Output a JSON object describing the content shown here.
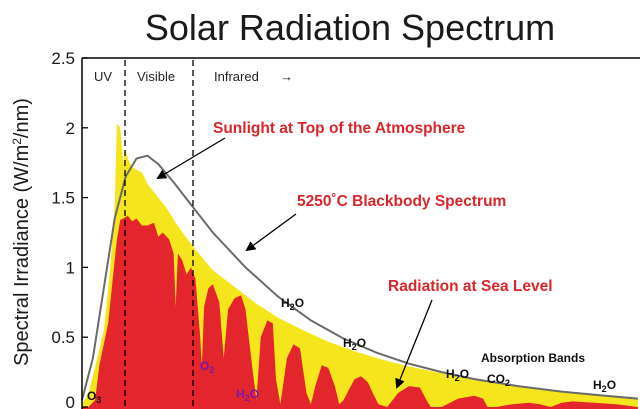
{
  "chart_data": {
    "type": "area",
    "title": "Solar Radiation Spectrum",
    "ylabel": "Spectral Irradiance (W/m²/nm)",
    "ylabel_parts": [
      "Spectral Irradiance (W/m",
      "2",
      "/nm)"
    ],
    "xlabel": "",
    "ylim": [
      0,
      2.5
    ],
    "yticks": [
      "0",
      "0.5",
      "1",
      "1.5",
      "2",
      "2.5"
    ],
    "ytick_values": [
      0,
      0.5,
      1,
      1.5,
      2,
      2.5
    ],
    "regions": [
      "UV",
      "Visible",
      "Infrared"
    ],
    "region_arrow": "→",
    "series": [
      {
        "name": "Sunlight at Top of the Atmosphere",
        "color": "#f5e51c",
        "x": [
          0,
          6,
          14,
          20,
          26,
          30,
          32,
          35,
          38,
          40,
          42,
          46,
          50,
          55,
          60,
          65,
          70,
          78,
          86,
          95,
          105,
          120,
          140,
          160,
          180,
          200,
          225,
          250,
          275,
          300,
          325,
          350,
          375,
          400,
          425,
          450,
          475,
          510
        ],
        "y": [
          0.02,
          0.1,
          0.35,
          0.55,
          1.0,
          1.45,
          2.03,
          2.0,
          1.75,
          1.85,
          1.78,
          1.72,
          1.7,
          1.68,
          1.6,
          1.55,
          1.5,
          1.42,
          1.32,
          1.22,
          1.12,
          0.98,
          0.86,
          0.74,
          0.64,
          0.56,
          0.47,
          0.4,
          0.34,
          0.29,
          0.25,
          0.21,
          0.18,
          0.15,
          0.12,
          0.1,
          0.08,
          0.06
        ]
      },
      {
        "name": "5250˚C Blackbody Spectrum",
        "color": "#6b6b6b",
        "x": [
          0,
          10,
          20,
          30,
          40,
          50,
          60,
          70,
          85,
          100,
          120,
          150,
          180,
          210,
          240,
          270,
          300,
          330,
          360,
          400,
          440,
          480,
          510
        ],
        "y": [
          0.05,
          0.35,
          0.85,
          1.35,
          1.65,
          1.78,
          1.8,
          1.74,
          1.6,
          1.45,
          1.25,
          1.0,
          0.79,
          0.62,
          0.49,
          0.39,
          0.31,
          0.25,
          0.2,
          0.15,
          0.11,
          0.08,
          0.06
        ]
      },
      {
        "name": "Radiation at Sea Level",
        "color": "#e3262e",
        "x": [
          0,
          6,
          12,
          16,
          20,
          24,
          28,
          32,
          35,
          38,
          42,
          46,
          50,
          55,
          60,
          66,
          70,
          74,
          80,
          84,
          86,
          88,
          92,
          96,
          100,
          104,
          108,
          110,
          112,
          116,
          120,
          126,
          130,
          134,
          140,
          146,
          150,
          156,
          160,
          164,
          170,
          175,
          178,
          182,
          188,
          194,
          200,
          206,
          210,
          214,
          220,
          226,
          232,
          236,
          240,
          250,
          256,
          262,
          268,
          272,
          280,
          290,
          300,
          310,
          316,
          320,
          330,
          345,
          360,
          368,
          372,
          380,
          395,
          410,
          420,
          430,
          440,
          450,
          470,
          490,
          510
        ],
        "y": [
          0,
          0.0,
          0.05,
          0.3,
          0.45,
          0.6,
          0.9,
          1.2,
          1.34,
          1.35,
          1.37,
          1.33,
          1.35,
          1.3,
          1.3,
          1.32,
          1.22,
          1.25,
          1.2,
          1.1,
          0.72,
          1.1,
          1.05,
          0.95,
          1.0,
          0.92,
          0.55,
          0.3,
          0.72,
          0.85,
          0.88,
          0.75,
          0.35,
          0.7,
          0.78,
          0.8,
          0.7,
          0.3,
          0.05,
          0.5,
          0.62,
          0.6,
          0.2,
          0.02,
          0.35,
          0.45,
          0.42,
          0.1,
          0.02,
          0.15,
          0.3,
          0.28,
          0.15,
          0.02,
          0.05,
          0.2,
          0.22,
          0.18,
          0.08,
          0.02,
          0.0,
          0.1,
          0.15,
          0.14,
          0.05,
          0.0,
          0.0,
          0.06,
          0.08,
          0.06,
          0.0,
          0.0,
          0.02,
          0.03,
          0.02,
          0.0,
          0.03,
          0.04,
          0.03,
          0.02,
          0.0
        ]
      }
    ],
    "callouts": [
      "Sunlight at Top of the Atmosphere",
      "5250˚C Blackbody Spectrum",
      "Radiation at Sea Level"
    ],
    "absorption_bands_title": "Absorption Bands",
    "absorption_bands": [
      {
        "base": "O",
        "sub": "3",
        "style": "dark"
      },
      {
        "base": "O",
        "sub": "2",
        "style": "purple"
      },
      {
        "base": "H",
        "sub": "2",
        "tail": "O",
        "style": "purple"
      },
      {
        "base": "H",
        "sub": "2",
        "tail": "O",
        "style": "dark"
      },
      {
        "base": "H",
        "sub": "2",
        "tail": "O",
        "style": "dark"
      },
      {
        "base": "H",
        "sub": "2",
        "tail": "O",
        "style": "dark"
      },
      {
        "base": "CO",
        "sub": "2",
        "style": "dark"
      },
      {
        "base": "H",
        "sub": "2",
        "tail": "O",
        "style": "dark"
      }
    ]
  }
}
